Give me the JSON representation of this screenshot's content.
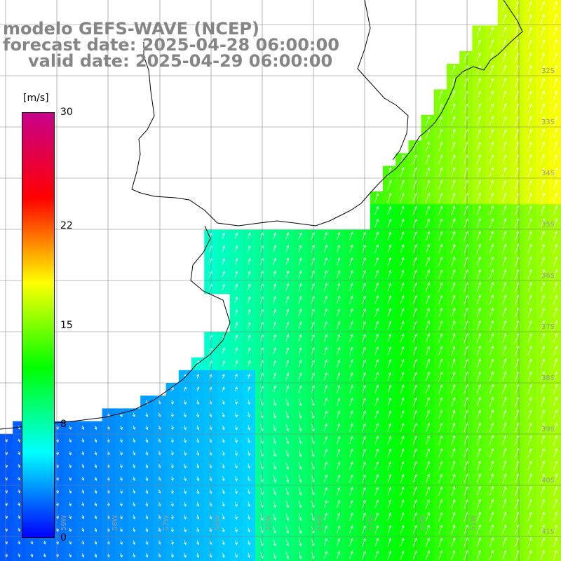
{
  "title": {
    "model": "modelo GEFS-WAVE (NCEP)",
    "forecast": "forecast date: 2025-04-28 06:00:00",
    "valid": "valid date: 2025-04-29 06:00:00"
  },
  "colorbar": {
    "unit": "[m/s]",
    "ticks": [
      "30",
      "22",
      "15",
      "8",
      "0"
    ],
    "tick_values": [
      30,
      22,
      15,
      8,
      0
    ],
    "colors": [
      "#0000ff",
      "#00ffff",
      "#00ff00",
      "#ffff00",
      "#ff0000",
      "#c8008c"
    ]
  },
  "map": {
    "lon_labels": [
      "59W",
      "58W",
      "57W",
      "56W",
      "55W",
      "54W",
      "53W",
      "52W",
      "51W"
    ],
    "lat_labels": [
      "32S",
      "33S",
      "34S",
      "35S",
      "36S",
      "37S",
      "38S",
      "39S",
      "40S",
      "41S"
    ],
    "land_color": "#ffffff",
    "grid_color": "#808080",
    "coast_color": "#000000",
    "arrow_color": "#ffffff"
  }
}
